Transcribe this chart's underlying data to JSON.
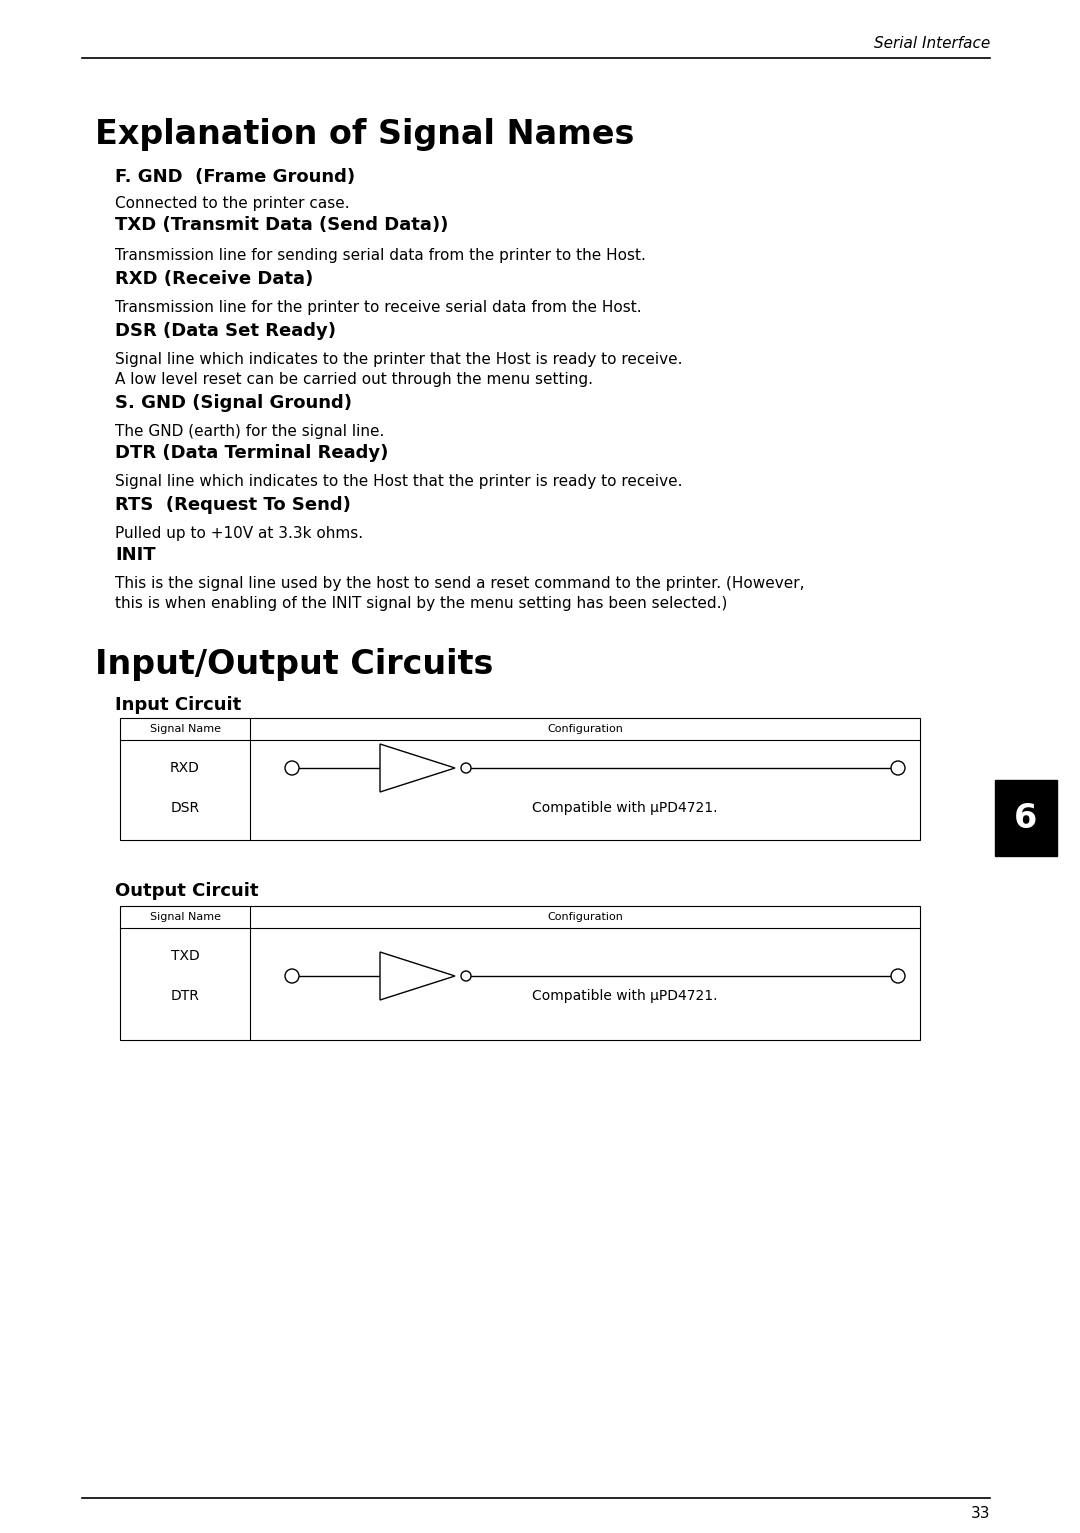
{
  "bg_color": "#ffffff",
  "page_width": 10.8,
  "page_height": 15.33,
  "header_text": "Serial Interface",
  "main_title": "Explanation of Signal Names",
  "sections": [
    {
      "heading": "F. GND  (Frame Ground)",
      "body": [
        "Connected to the printer case."
      ]
    },
    {
      "heading": "TXD (Transmit Data (Send Data))",
      "body": [
        "Transmission line for sending serial data from the printer to the Host."
      ]
    },
    {
      "heading": "RXD (Receive Data)",
      "body": [
        "Transmission line for the printer to receive serial data from the Host."
      ]
    },
    {
      "heading": "DSR (Data Set Ready)",
      "body": [
        "Signal line which indicates to the printer that the Host is ready to receive.",
        "A low level reset can be carried out through the menu setting."
      ]
    },
    {
      "heading": "S. GND (Signal Ground)",
      "body": [
        "The GND (earth) for the signal line."
      ]
    },
    {
      "heading": "DTR (Data Terminal Ready)",
      "body": [
        "Signal line which indicates to the Host that the printer is ready to receive."
      ]
    },
    {
      "heading": "RTS  (Request To Send)",
      "body": [
        "Pulled up to +10V at 3.3k ohms."
      ]
    },
    {
      "heading": "INIT",
      "body": [
        "This is the signal line used by the host to send a reset command to the printer. (However,",
        "this is when enabling of the INIT signal by the menu setting has been selected.)"
      ]
    }
  ],
  "io_title": "Input/Output Circuits",
  "input_heading": "Input Circuit",
  "input_table_header": [
    "Signal Name",
    "Configuration"
  ],
  "input_signals": [
    "RXD",
    "DSR"
  ],
  "input_compat": "Compatible with μPD4721.",
  "output_heading": "Output Circuit",
  "output_table_header": [
    "Signal Name",
    "Configuration"
  ],
  "output_signals": [
    "TXD",
    "DTR"
  ],
  "output_compat": "Compatible with μPD4721.",
  "tab_number": "6",
  "page_number": "33"
}
